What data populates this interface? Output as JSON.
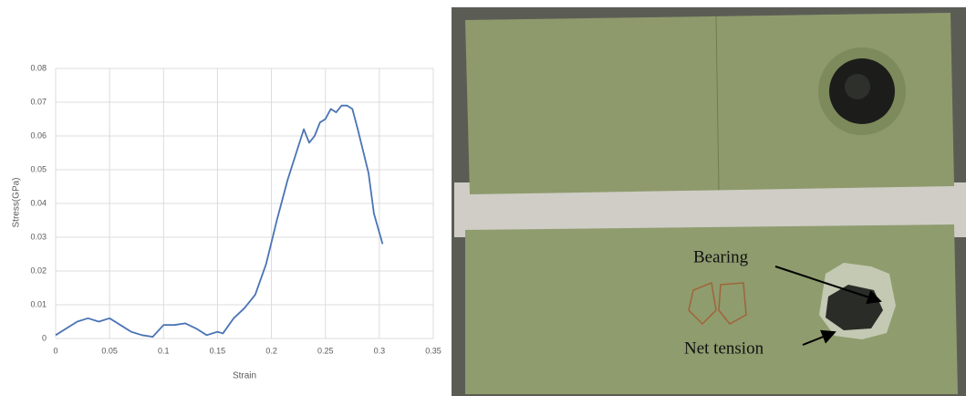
{
  "chart_data": {
    "type": "line",
    "x_label": "Strain",
    "y_label": "Stress(GPa)",
    "x": [
      0,
      0.01,
      0.02,
      0.03,
      0.04,
      0.05,
      0.06,
      0.07,
      0.08,
      0.09,
      0.1,
      0.11,
      0.12,
      0.13,
      0.14,
      0.15,
      0.155,
      0.165,
      0.175,
      0.185,
      0.195,
      0.205,
      0.215,
      0.225,
      0.23,
      0.235,
      0.24,
      0.245,
      0.25,
      0.255,
      0.26,
      0.265,
      0.27,
      0.275,
      0.28,
      0.29,
      0.295,
      0.303
    ],
    "values": [
      0.001,
      0.003,
      0.005,
      0.006,
      0.005,
      0.006,
      0.004,
      0.002,
      0.001,
      0.0005,
      0.004,
      0.004,
      0.0045,
      0.003,
      0.001,
      0.002,
      0.0015,
      0.006,
      0.009,
      0.013,
      0.022,
      0.035,
      0.047,
      0.057,
      0.062,
      0.058,
      0.06,
      0.064,
      0.065,
      0.068,
      0.067,
      0.069,
      0.069,
      0.068,
      0.062,
      0.049,
      0.037,
      0.028
    ],
    "color": "#4a74b4",
    "xlim": [
      0,
      0.35
    ],
    "xticks": [
      0,
      0.05,
      0.1,
      0.15,
      0.2,
      0.25,
      0.3,
      0.35
    ],
    "ylim": [
      0,
      0.08
    ],
    "yticks": [
      0,
      0.01,
      0.02,
      0.03,
      0.04,
      0.05,
      0.06,
      0.07,
      0.08
    ],
    "grid": true
  },
  "photo_labels": [
    "Bearing",
    "Net tension"
  ]
}
